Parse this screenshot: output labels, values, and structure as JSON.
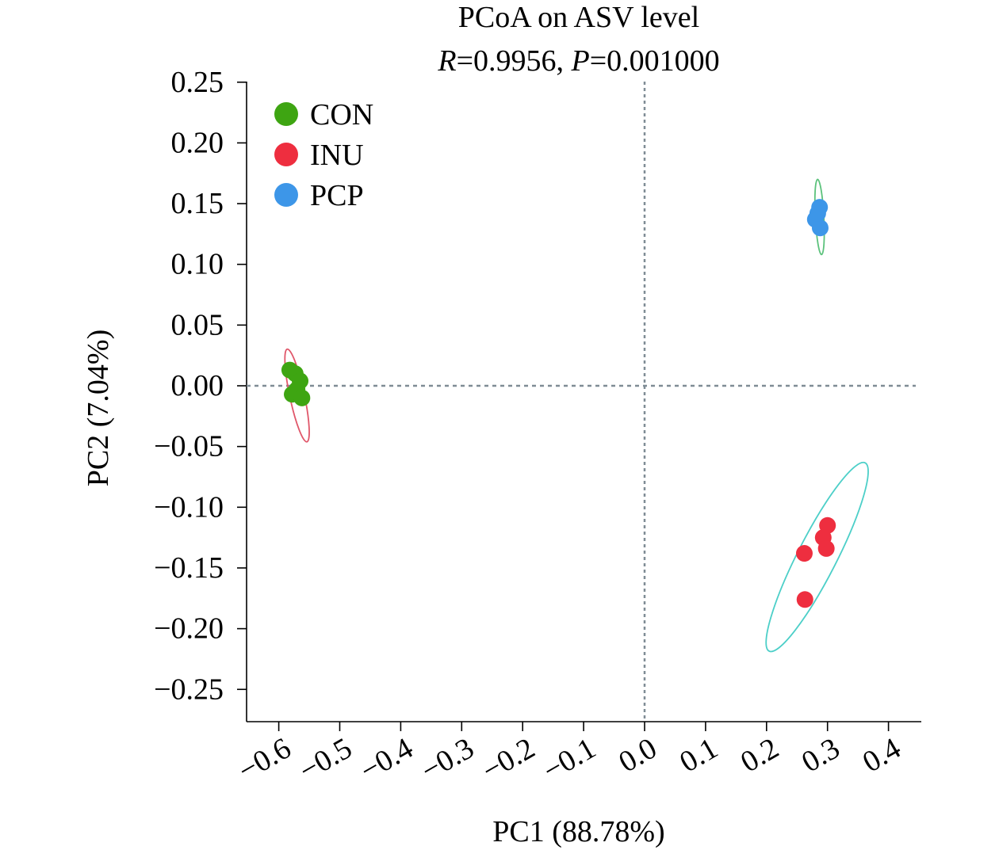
{
  "chart_data": {
    "type": "scatter",
    "title": "PCoA on ASV level",
    "subtitle": {
      "r_label": "R",
      "r_value": "=0.9956, ",
      "p_label": "P",
      "p_value": "=0.001000"
    },
    "xlabel": "PC1 (88.78%)",
    "ylabel": "PC2 (7.04%)",
    "xlim": [
      -0.65,
      0.45
    ],
    "ylim": [
      -0.275,
      0.25
    ],
    "xticks": [
      -0.6,
      -0.5,
      -0.4,
      -0.3,
      -0.2,
      -0.1,
      0.0,
      0.1,
      0.2,
      0.3,
      0.4
    ],
    "xtick_labels": [
      "−0.6",
      "−0.5",
      "−0.4",
      "−0.3",
      "−0.2",
      "−0.1",
      "0.0",
      "0.1",
      "0.2",
      "0.3",
      "0.4"
    ],
    "yticks": [
      0.25,
      0.2,
      0.15,
      0.1,
      0.05,
      0.0,
      -0.05,
      -0.1,
      -0.15,
      -0.2,
      -0.25
    ],
    "ytick_labels": [
      "0.25",
      "0.20",
      "0.15",
      "0.10",
      "0.05",
      "0.00",
      "−0.05",
      "−0.10",
      "−0.15",
      "−0.20",
      "−0.25"
    ],
    "reference_lines": {
      "x": 0.0,
      "y": 0.0,
      "style": "dotted",
      "color": "#7f8c95"
    },
    "legend": {
      "placement": "top-left"
    },
    "series": [
      {
        "name": "CON",
        "color": "#3ea512",
        "points": [
          [
            -0.582,
            0.013
          ],
          [
            -0.573,
            0.01
          ],
          [
            -0.565,
            0.004
          ],
          [
            -0.57,
            -0.003
          ],
          [
            -0.578,
            -0.007
          ],
          [
            -0.562,
            -0.01
          ]
        ],
        "ellipse": {
          "color": "#e0576a",
          "center": [
            -0.57,
            -0.008
          ],
          "rx": 0.012,
          "ry": 0.039,
          "rotation": -12
        }
      },
      {
        "name": "INU",
        "color": "#ee2e3f",
        "points": [
          [
            0.3,
            -0.115
          ],
          [
            0.293,
            -0.125
          ],
          [
            0.298,
            -0.134
          ],
          [
            0.262,
            -0.138
          ],
          [
            0.263,
            -0.176
          ]
        ],
        "ellipse": {
          "color": "#4ccfc8",
          "center": [
            0.283,
            -0.141
          ],
          "rx": 0.032,
          "ry": 0.087,
          "rotation": 27
        }
      },
      {
        "name": "PCP",
        "color": "#3d96e8",
        "points": [
          [
            0.287,
            0.147
          ],
          [
            0.28,
            0.137
          ],
          [
            0.288,
            0.13
          ],
          [
            0.284,
            0.142
          ]
        ],
        "ellipse": {
          "color": "#5cc27c",
          "center": [
            0.287,
            0.139
          ],
          "rx": 0.007,
          "ry": 0.031,
          "rotation": -3
        }
      }
    ]
  }
}
